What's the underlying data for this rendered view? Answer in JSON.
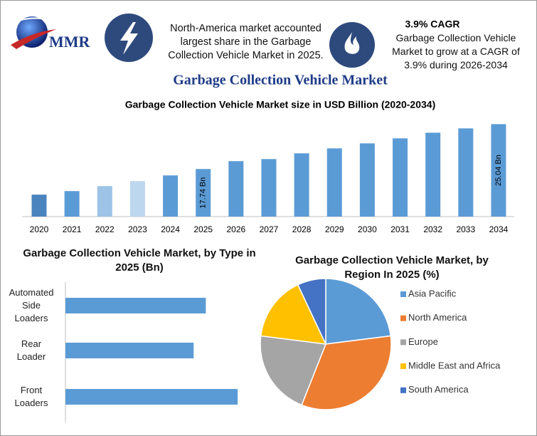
{
  "header": {
    "logo_text": "MMR",
    "left_text": "North-America market accounted largest share in the Garbage Collection Vehicle Market in 2025.",
    "cagr_title": "3.9% CAGR",
    "cagr_text": "Garbage Collection Vehicle Market to grow at a CAGR of 3.9% during 2026-2034",
    "title": "Garbage Collection Vehicle Market"
  },
  "chart_data": [
    {
      "type": "bar",
      "title": "Garbage Collection Vehicle Market size in USD Billion (2020-2034)",
      "categories": [
        "2020",
        "2021",
        "2022",
        "2023",
        "2024",
        "2025",
        "2026",
        "2027",
        "2028",
        "2029",
        "2030",
        "2031",
        "2032",
        "2033",
        "2034"
      ],
      "values": [
        13.57,
        14.15,
        14.96,
        15.77,
        16.7,
        17.74,
        19.02,
        19.36,
        20.29,
        21.1,
        21.91,
        22.73,
        23.65,
        24.35,
        25.04
      ],
      "value_labels": [
        null,
        null,
        null,
        null,
        null,
        "17.74 Bn",
        null,
        null,
        null,
        null,
        null,
        null,
        null,
        null,
        "25.04 Bn"
      ],
      "colors": [
        "#4a84bf",
        "#5b9bd5",
        "#9dc3e6",
        "#bdd7ee",
        "#5b9bd5",
        "#5b9bd5",
        "#5b9bd5",
        "#5b9bd5",
        "#5b9bd5",
        "#5b9bd5",
        "#5b9bd5",
        "#5b9bd5",
        "#5b9bd5",
        "#5b9bd5",
        "#5b9bd5"
      ],
      "ylim": [
        10,
        26
      ]
    },
    {
      "type": "hbar",
      "title": "Garbage Collection Vehicle Market, by Type in 2025 (Bn)",
      "categories": [
        "Automated Side Loaders",
        "Rear Loader",
        "Front Loaders"
      ],
      "values": [
        5.65,
        5.16,
        6.93
      ],
      "color": "#5b9bd5",
      "xlim": [
        0,
        7.7
      ]
    },
    {
      "type": "pie",
      "title": "Garbage Collection Vehicle Market, by Region In 2025 (%)",
      "categories": [
        "Asia Pacific",
        "North America",
        "Europe",
        "Middle East and Africa",
        "South America"
      ],
      "values": [
        23,
        33,
        21,
        16,
        7
      ],
      "colors": [
        "#5b9bd5",
        "#ed7d31",
        "#a5a5a5",
        "#ffc000",
        "#4472c4"
      ],
      "legend": "right"
    }
  ]
}
